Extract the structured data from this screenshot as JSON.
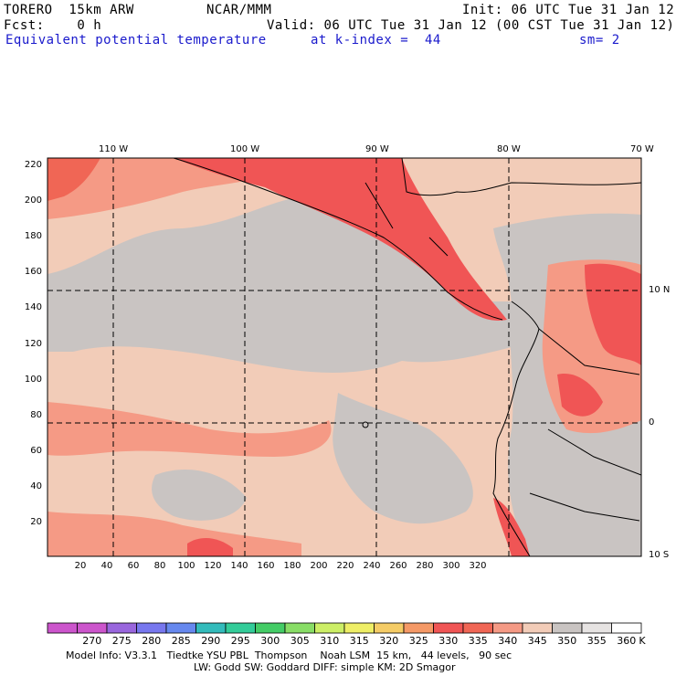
{
  "header": {
    "model_name": "TORERO  15km ARW",
    "org": "NCAR/MMM",
    "init": "Init: 06 UTC Tue 31 Jan 12",
    "fcst": "Fcst:    0 h",
    "valid": "Valid: 06 UTC Tue 31 Jan 12 (00 CST Tue 31 Jan 12)",
    "field": "Equivalent potential temperature",
    "level": "at k-index =  44",
    "smooth": "sm= 2"
  },
  "map": {
    "lon_labels": [
      "110 W",
      "100 W",
      "90 W",
      "80 W",
      "70 W"
    ],
    "lat_labels": [
      "10 N",
      "0",
      "10 S"
    ],
    "x_ticks": [
      "20",
      "40",
      "60",
      "80",
      "100",
      "120",
      "140",
      "160",
      "180",
      "200",
      "220",
      "240",
      "260",
      "280",
      "300",
      "320"
    ],
    "y_ticks": [
      "220",
      "200",
      "180",
      "160",
      "140",
      "120",
      "100",
      "80",
      "60",
      "40",
      "20"
    ]
  },
  "colorbar": {
    "labels": [
      "270",
      "275",
      "280",
      "285",
      "290",
      "295",
      "300",
      "305",
      "310",
      "315",
      "320",
      "325",
      "330",
      "335",
      "340",
      "345",
      "350",
      "355",
      "360"
    ],
    "unit": "K",
    "colors": [
      "#cc55cc",
      "#9966dd",
      "#7777ee",
      "#6688ee",
      "#33bbbb",
      "#33cc99",
      "#44cc66",
      "#88dd66",
      "#ccee66",
      "#eeee66",
      "#f5cc66",
      "#f59966",
      "#f05555",
      "#f06655",
      "#f59a85",
      "#f2ccb8",
      "#c9c4c2",
      "#e6e3e2",
      "#ffffff"
    ]
  },
  "footer": {
    "line1": "Model Info: V3.3.1   Tiedtke YSU PBL  Thompson    Noah LSM  15 km,   44 levels,   90 sec",
    "line2": "LW: Godd SW: Goddard DIFF: simple KM: 2D Smagor"
  }
}
